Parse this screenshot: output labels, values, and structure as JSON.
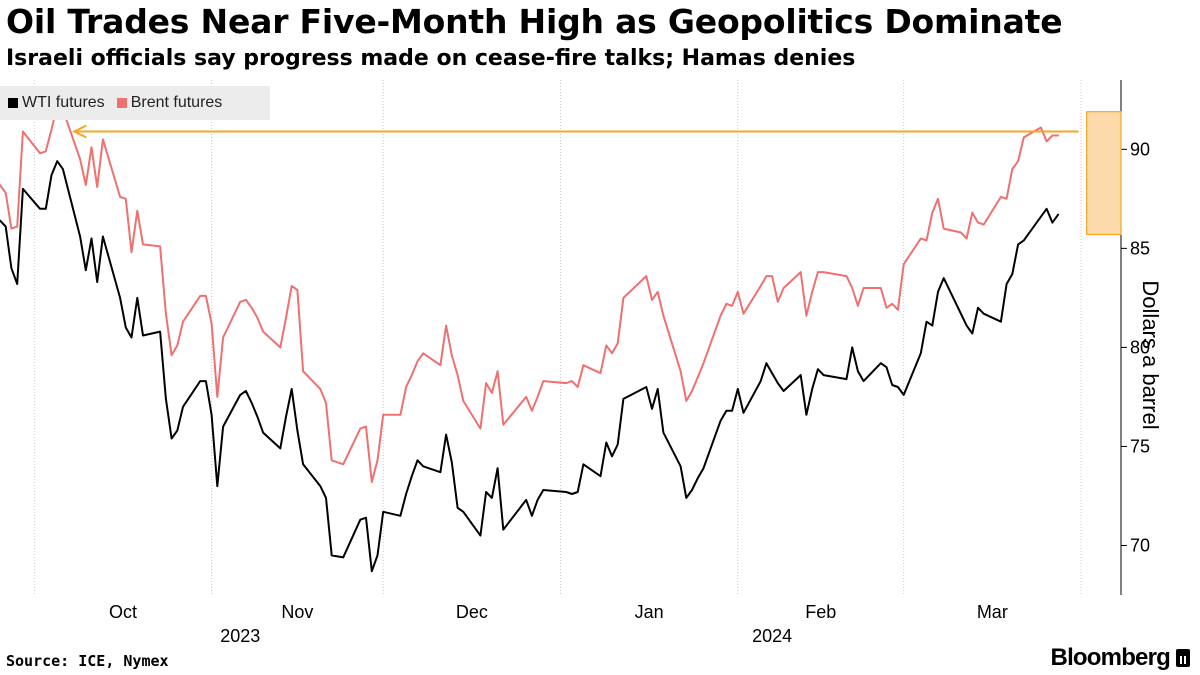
{
  "title": "Oil Trades Near Five-Month High as Geopolitics Dominate",
  "subtitle": "Israeli officials say progress made on cease-fire talks; Hamas denies",
  "legend": [
    {
      "label": "WTI futures",
      "color": "#000000"
    },
    {
      "label": "Brent futures",
      "color": "#f07070"
    }
  ],
  "source": "Source: ICE, Nymex",
  "brand": "Bloomberg",
  "chart_data": {
    "type": "line",
    "ylabel": "Dollars a barrel",
    "ylim": [
      67.5,
      93.5
    ],
    "yticks": [
      70,
      75,
      80,
      85,
      90
    ],
    "xlim": [
      "2023-09-25",
      "2024-04-08"
    ],
    "month_ticks": [
      {
        "label": "Oct",
        "date": "2023-10-01"
      },
      {
        "label": "Nov",
        "date": "2023-11-01"
      },
      {
        "label": "Dec",
        "date": "2023-12-01"
      },
      {
        "label": "Jan",
        "date": "2024-01-01"
      },
      {
        "label": "Feb",
        "date": "2024-02-01"
      },
      {
        "label": "Mar",
        "date": "2024-03-01"
      }
    ],
    "year_labels": [
      {
        "label": "2023",
        "date": "2023-11-06"
      },
      {
        "label": "2024",
        "date": "2024-02-07"
      }
    ],
    "grid": "vertical-dotted",
    "legend_position": "top-left",
    "annotation": {
      "type": "highlight-box-with-arrow",
      "from_date": "2024-04-02",
      "to_date": "2024-04-08",
      "y_range": [
        85.7,
        91.9
      ],
      "arrow_y": 90.9,
      "arrow_to_date": "2023-10-08",
      "color": "#f5a623"
    },
    "series": [
      {
        "name": "WTI futures",
        "color": "#000000",
        "points": [
          [
            "2023-09-25",
            86.4
          ],
          [
            "2023-09-26",
            86.1
          ],
          [
            "2023-09-27",
            84.0
          ],
          [
            "2023-09-28",
            83.2
          ],
          [
            "2023-09-29",
            88.0
          ],
          [
            "2023-10-02",
            87.0
          ],
          [
            "2023-10-03",
            87.0
          ],
          [
            "2023-10-04",
            88.7
          ],
          [
            "2023-10-05",
            89.4
          ],
          [
            "2023-10-06",
            89.0
          ],
          [
            "2023-10-09",
            85.6
          ],
          [
            "2023-10-10",
            83.9
          ],
          [
            "2023-10-11",
            85.5
          ],
          [
            "2023-10-12",
            83.3
          ],
          [
            "2023-10-13",
            85.6
          ],
          [
            "2023-10-16",
            82.5
          ],
          [
            "2023-10-17",
            81.0
          ],
          [
            "2023-10-18",
            80.5
          ],
          [
            "2023-10-19",
            82.5
          ],
          [
            "2023-10-20",
            80.6
          ],
          [
            "2023-10-23",
            80.8
          ],
          [
            "2023-10-24",
            77.4
          ],
          [
            "2023-10-25",
            75.4
          ],
          [
            "2023-10-26",
            75.8
          ],
          [
            "2023-10-27",
            77.0
          ],
          [
            "2023-10-30",
            78.3
          ],
          [
            "2023-10-31",
            78.3
          ],
          [
            "2023-11-01",
            76.6
          ],
          [
            "2023-11-02",
            73.0
          ],
          [
            "2023-11-03",
            76.0
          ],
          [
            "2023-11-06",
            77.6
          ],
          [
            "2023-11-07",
            77.8
          ],
          [
            "2023-11-08",
            77.2
          ],
          [
            "2023-11-09",
            76.5
          ],
          [
            "2023-11-10",
            75.7
          ],
          [
            "2023-11-13",
            74.9
          ],
          [
            "2023-11-14",
            76.5
          ],
          [
            "2023-11-15",
            77.9
          ],
          [
            "2023-11-16",
            75.8
          ],
          [
            "2023-11-17",
            74.1
          ],
          [
            "2023-11-20",
            73.0
          ],
          [
            "2023-11-21",
            72.4
          ],
          [
            "2023-11-22",
            69.5
          ],
          [
            "2023-11-24",
            69.4
          ],
          [
            "2023-11-27",
            71.3
          ],
          [
            "2023-11-28",
            71.4
          ],
          [
            "2023-11-29",
            68.7
          ],
          [
            "2023-11-30",
            69.5
          ],
          [
            "2023-12-01",
            71.7
          ],
          [
            "2023-12-04",
            71.5
          ],
          [
            "2023-12-05",
            72.6
          ],
          [
            "2023-12-06",
            73.5
          ],
          [
            "2023-12-07",
            74.3
          ],
          [
            "2023-12-08",
            74.0
          ],
          [
            "2023-12-11",
            73.7
          ],
          [
            "2023-12-12",
            75.6
          ],
          [
            "2023-12-13",
            74.2
          ],
          [
            "2023-12-14",
            71.9
          ],
          [
            "2023-12-15",
            71.7
          ],
          [
            "2023-12-18",
            70.5
          ],
          [
            "2023-12-19",
            72.7
          ],
          [
            "2023-12-20",
            72.4
          ],
          [
            "2023-12-21",
            73.9
          ],
          [
            "2023-12-22",
            70.8
          ],
          [
            "2023-12-26",
            72.3
          ],
          [
            "2023-12-27",
            71.5
          ],
          [
            "2023-12-28",
            72.3
          ],
          [
            "2023-12-29",
            72.8
          ],
          [
            "2024-01-02",
            72.7
          ],
          [
            "2024-01-03",
            72.6
          ],
          [
            "2024-01-04",
            72.7
          ],
          [
            "2024-01-05",
            74.1
          ],
          [
            "2024-01-08",
            73.5
          ],
          [
            "2024-01-09",
            75.2
          ],
          [
            "2024-01-10",
            74.5
          ],
          [
            "2024-01-11",
            75.1
          ],
          [
            "2024-01-12",
            77.4
          ],
          [
            "2024-01-16",
            78.0
          ],
          [
            "2024-01-17",
            76.9
          ],
          [
            "2024-01-18",
            77.9
          ],
          [
            "2024-01-19",
            75.7
          ],
          [
            "2024-01-22",
            74.0
          ],
          [
            "2024-01-23",
            72.4
          ],
          [
            "2024-01-24",
            72.8
          ],
          [
            "2024-01-25",
            73.4
          ],
          [
            "2024-01-26",
            73.9
          ],
          [
            "2024-01-29",
            76.3
          ],
          [
            "2024-01-30",
            76.8
          ],
          [
            "2024-01-31",
            76.8
          ],
          [
            "2024-02-01",
            77.9
          ],
          [
            "2024-02-02",
            76.7
          ],
          [
            "2024-02-05",
            78.3
          ],
          [
            "2024-02-06",
            79.2
          ],
          [
            "2024-02-07",
            78.7
          ],
          [
            "2024-02-08",
            78.2
          ],
          [
            "2024-02-09",
            77.8
          ],
          [
            "2024-02-12",
            78.6
          ],
          [
            "2024-02-13",
            76.6
          ],
          [
            "2024-02-14",
            77.9
          ],
          [
            "2024-02-15",
            78.9
          ],
          [
            "2024-02-16",
            78.6
          ],
          [
            "2024-02-20",
            78.4
          ],
          [
            "2024-02-21",
            80.0
          ],
          [
            "2024-02-22",
            78.8
          ],
          [
            "2024-02-23",
            78.3
          ],
          [
            "2024-02-26",
            79.2
          ],
          [
            "2024-02-27",
            79.0
          ],
          [
            "2024-02-28",
            78.1
          ],
          [
            "2024-02-29",
            78.0
          ],
          [
            "2024-03-01",
            77.6
          ],
          [
            "2024-03-04",
            79.7
          ],
          [
            "2024-03-05",
            81.3
          ],
          [
            "2024-03-06",
            81.1
          ],
          [
            "2024-03-07",
            82.8
          ],
          [
            "2024-03-08",
            83.5
          ],
          [
            "2024-03-11",
            81.7
          ],
          [
            "2024-03-12",
            81.1
          ],
          [
            "2024-03-13",
            80.7
          ],
          [
            "2024-03-14",
            82.0
          ],
          [
            "2024-03-15",
            81.7
          ],
          [
            "2024-03-18",
            81.3
          ],
          [
            "2024-03-19",
            83.2
          ],
          [
            "2024-03-20",
            83.7
          ],
          [
            "2024-03-21",
            85.2
          ],
          [
            "2024-03-22",
            85.4
          ],
          [
            "2024-03-25",
            86.6
          ],
          [
            "2024-03-26",
            87.0
          ],
          [
            "2024-03-27",
            86.3
          ],
          [
            "2024-03-28",
            86.7
          ]
        ]
      },
      {
        "name": "Brent futures",
        "color": "#f07070",
        "points": [
          [
            "2023-09-25",
            88.2
          ],
          [
            "2023-09-26",
            87.8
          ],
          [
            "2023-09-27",
            86.0
          ],
          [
            "2023-09-28",
            86.1
          ],
          [
            "2023-09-29",
            90.9
          ],
          [
            "2023-10-02",
            89.8
          ],
          [
            "2023-10-03",
            89.9
          ],
          [
            "2023-10-04",
            91.0
          ],
          [
            "2023-10-05",
            92.2
          ],
          [
            "2023-10-06",
            92.0
          ],
          [
            "2023-10-09",
            89.5
          ],
          [
            "2023-10-10",
            88.2
          ],
          [
            "2023-10-11",
            90.1
          ],
          [
            "2023-10-12",
            88.1
          ],
          [
            "2023-10-13",
            90.5
          ],
          [
            "2023-10-16",
            87.6
          ],
          [
            "2023-10-17",
            87.5
          ],
          [
            "2023-10-18",
            84.8
          ],
          [
            "2023-10-19",
            86.9
          ],
          [
            "2023-10-20",
            85.2
          ],
          [
            "2023-10-23",
            85.1
          ],
          [
            "2023-10-24",
            81.7
          ],
          [
            "2023-10-25",
            79.6
          ],
          [
            "2023-10-26",
            80.1
          ],
          [
            "2023-10-27",
            81.3
          ],
          [
            "2023-10-30",
            82.6
          ],
          [
            "2023-10-31",
            82.6
          ],
          [
            "2023-11-01",
            81.2
          ],
          [
            "2023-11-02",
            77.5
          ],
          [
            "2023-11-03",
            80.5
          ],
          [
            "2023-11-06",
            82.3
          ],
          [
            "2023-11-07",
            82.4
          ],
          [
            "2023-11-08",
            82.0
          ],
          [
            "2023-11-09",
            81.5
          ],
          [
            "2023-11-10",
            80.8
          ],
          [
            "2023-11-13",
            80.0
          ],
          [
            "2023-11-14",
            81.5
          ],
          [
            "2023-11-15",
            83.1
          ],
          [
            "2023-11-16",
            82.9
          ],
          [
            "2023-11-17",
            78.8
          ],
          [
            "2023-11-20",
            77.9
          ],
          [
            "2023-11-21",
            77.2
          ],
          [
            "2023-11-22",
            74.3
          ],
          [
            "2023-11-24",
            74.1
          ],
          [
            "2023-11-27",
            75.9
          ],
          [
            "2023-11-28",
            76.0
          ],
          [
            "2023-11-29",
            73.2
          ],
          [
            "2023-11-30",
            74.3
          ],
          [
            "2023-12-01",
            76.6
          ],
          [
            "2023-12-04",
            76.6
          ],
          [
            "2023-12-05",
            78.0
          ],
          [
            "2023-12-06",
            78.6
          ],
          [
            "2023-12-07",
            79.3
          ],
          [
            "2023-12-08",
            79.7
          ],
          [
            "2023-12-11",
            79.1
          ],
          [
            "2023-12-12",
            81.1
          ],
          [
            "2023-12-13",
            79.6
          ],
          [
            "2023-12-14",
            78.6
          ],
          [
            "2023-12-15",
            77.3
          ],
          [
            "2023-12-18",
            75.9
          ],
          [
            "2023-12-19",
            78.2
          ],
          [
            "2023-12-20",
            77.7
          ],
          [
            "2023-12-21",
            78.8
          ],
          [
            "2023-12-22",
            76.1
          ],
          [
            "2023-12-26",
            77.5
          ],
          [
            "2023-12-27",
            76.8
          ],
          [
            "2023-12-28",
            77.5
          ],
          [
            "2023-12-29",
            78.3
          ],
          [
            "2024-01-02",
            78.2
          ],
          [
            "2024-01-03",
            78.3
          ],
          [
            "2024-01-04",
            78.0
          ],
          [
            "2024-01-05",
            79.1
          ],
          [
            "2024-01-08",
            78.7
          ],
          [
            "2024-01-09",
            80.1
          ],
          [
            "2024-01-10",
            79.7
          ],
          [
            "2024-01-11",
            80.2
          ],
          [
            "2024-01-12",
            82.5
          ],
          [
            "2024-01-16",
            83.6
          ],
          [
            "2024-01-17",
            82.4
          ],
          [
            "2024-01-18",
            82.8
          ],
          [
            "2024-01-19",
            81.6
          ],
          [
            "2024-01-22",
            78.8
          ],
          [
            "2024-01-23",
            77.3
          ],
          [
            "2024-01-24",
            77.8
          ],
          [
            "2024-01-25",
            78.5
          ],
          [
            "2024-01-26",
            79.2
          ],
          [
            "2024-01-29",
            81.6
          ],
          [
            "2024-01-30",
            82.2
          ],
          [
            "2024-01-31",
            82.1
          ],
          [
            "2024-02-01",
            82.8
          ],
          [
            "2024-02-02",
            81.7
          ],
          [
            "2024-02-05",
            83.1
          ],
          [
            "2024-02-06",
            83.6
          ],
          [
            "2024-02-07",
            83.6
          ],
          [
            "2024-02-08",
            82.3
          ],
          [
            "2024-02-09",
            83.0
          ],
          [
            "2024-02-12",
            83.8
          ],
          [
            "2024-02-13",
            81.6
          ],
          [
            "2024-02-14",
            82.8
          ],
          [
            "2024-02-15",
            83.8
          ],
          [
            "2024-02-16",
            83.8
          ],
          [
            "2024-02-20",
            83.6
          ],
          [
            "2024-02-21",
            83.0
          ],
          [
            "2024-02-22",
            82.1
          ],
          [
            "2024-02-23",
            83.0
          ],
          [
            "2024-02-26",
            83.0
          ],
          [
            "2024-02-27",
            82.0
          ],
          [
            "2024-02-28",
            82.2
          ],
          [
            "2024-02-29",
            81.9
          ],
          [
            "2024-03-01",
            84.2
          ],
          [
            "2024-03-04",
            85.5
          ],
          [
            "2024-03-05",
            85.4
          ],
          [
            "2024-03-06",
            86.8
          ],
          [
            "2024-03-07",
            87.5
          ],
          [
            "2024-03-08",
            86.0
          ],
          [
            "2024-03-11",
            85.8
          ],
          [
            "2024-03-12",
            85.5
          ],
          [
            "2024-03-13",
            86.8
          ],
          [
            "2024-03-14",
            86.3
          ],
          [
            "2024-03-15",
            86.2
          ],
          [
            "2024-03-18",
            87.6
          ],
          [
            "2024-03-19",
            87.5
          ],
          [
            "2024-03-20",
            89.0
          ],
          [
            "2024-03-21",
            89.4
          ],
          [
            "2024-03-22",
            90.6
          ],
          [
            "2024-03-25",
            91.1
          ],
          [
            "2024-03-26",
            90.4
          ],
          [
            "2024-03-27",
            90.7
          ],
          [
            "2024-03-28",
            90.7
          ]
        ]
      }
    ]
  }
}
